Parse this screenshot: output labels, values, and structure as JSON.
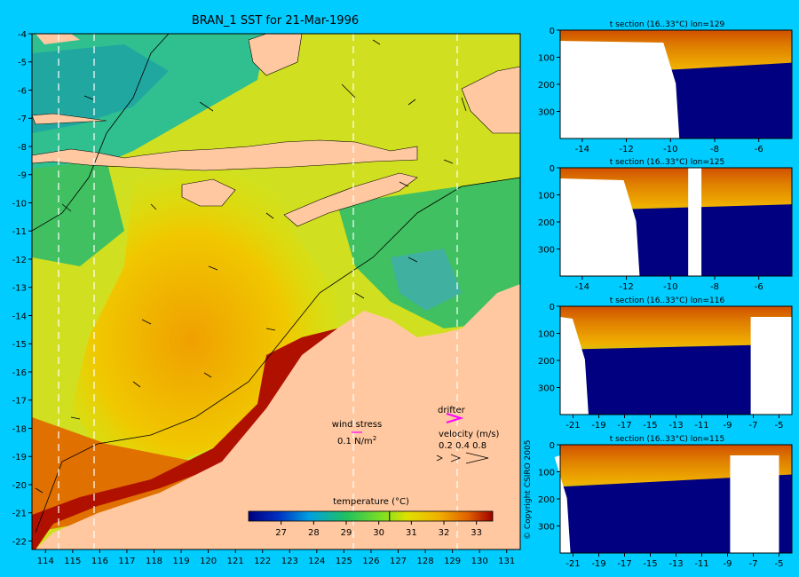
{
  "chart_data": [
    {
      "type": "heatmap",
      "title": "BRAN_1 SST for 21-Mar-1996",
      "xlim": [
        113.5,
        131.5
      ],
      "ylim": [
        -22.3,
        -4
      ],
      "x_ticks": [
        "114",
        "115",
        "116",
        "117",
        "118",
        "119",
        "120",
        "121",
        "122",
        "123",
        "124",
        "125",
        "126",
        "127",
        "128",
        "129",
        "130",
        "131"
      ],
      "y_ticks": [
        "-4",
        "-5",
        "-6",
        "-7",
        "-8",
        "-9",
        "-10",
        "-11",
        "-12",
        "-13",
        "-14",
        "-15",
        "-16",
        "-17",
        "-18",
        "-19",
        "-20",
        "-21",
        "-22"
      ],
      "section_lines_lon": [
        114.5,
        115.8,
        125.4,
        129.3
      ],
      "colorbar": {
        "label": "temperature (°C)",
        "range": [
          26,
          33.5
        ],
        "ticks": [
          "27",
          "28",
          "29",
          "30",
          "31",
          "32",
          "33"
        ],
        "marker": 30.33
      },
      "legend": {
        "wind_label": "wind stress",
        "wind_scale": "0.1 N/m",
        "wind_scale_sup": "2",
        "drifter_label": "drifter",
        "velocity_label": "velocity (m/s)",
        "velocity_scale": "0.2 0.4 0.8"
      }
    },
    {
      "type": "heatmap",
      "title": "t section (16..33°C) lon=129",
      "xlim": [
        -15,
        -4.5
      ],
      "ylim": [
        400,
        0
      ],
      "x_ticks": [
        "-14",
        "-12",
        "-10",
        "-8",
        "-6"
      ],
      "y_ticks": [
        "0",
        "100",
        "200",
        "300"
      ],
      "land_x": -9.6,
      "gap": null,
      "thermocline_depth": [
        170,
        120
      ]
    },
    {
      "type": "heatmap",
      "title": "t section (16..33°C) lon=125",
      "xlim": [
        -15,
        -4.5
      ],
      "ylim": [
        400,
        0
      ],
      "x_ticks": [
        "-14",
        "-12",
        "-10",
        "-8",
        "-6"
      ],
      "y_ticks": [
        "0",
        "100",
        "200",
        "300"
      ],
      "land_x": -11.4,
      "gap": [
        -9.2,
        -8.6
      ],
      "thermocline_depth": [
        160,
        135
      ]
    },
    {
      "type": "heatmap",
      "title": "t section (16..33°C) lon=116",
      "xlim": [
        -22,
        -4
      ],
      "ylim": [
        400,
        0
      ],
      "x_ticks": [
        "-21",
        "-19",
        "-17",
        "-15",
        "-13",
        "-11",
        "-9",
        "-7",
        "-5"
      ],
      "y_ticks": [
        "0",
        "100",
        "200",
        "300"
      ],
      "land_x": -19.8,
      "gap": [
        -7.2,
        -4
      ],
      "thermocline_depth": [
        160,
        140
      ]
    },
    {
      "type": "heatmap",
      "title": "t section (16..33°C) lon=115",
      "xlim": [
        -22,
        -4
      ],
      "ylim": [
        400,
        0
      ],
      "x_ticks": [
        "-21",
        "-19",
        "-17",
        "-15",
        "-13",
        "-11",
        "-9",
        "-7",
        "-5"
      ],
      "y_ticks": [
        "0",
        "100",
        "200",
        "300"
      ],
      "land_x": -21.2,
      "gap": [
        -8.8,
        -5
      ],
      "thermocline_depth": [
        155,
        110
      ]
    }
  ],
  "copyright": "© Copyright CSIRO 2005"
}
